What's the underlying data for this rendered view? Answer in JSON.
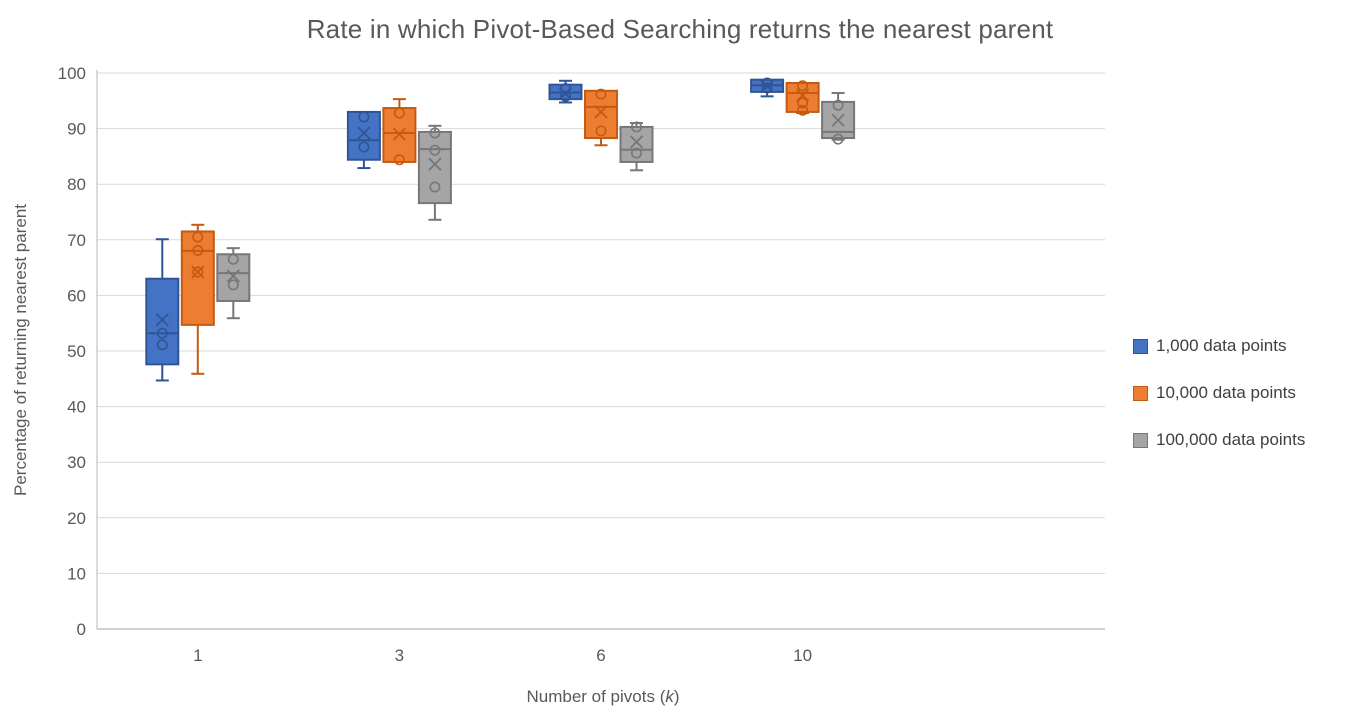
{
  "colors": {
    "background": "#FFFFFF",
    "gridline": "#D9D9D9",
    "axis_line": "#C3C3C3",
    "title_text": "#595959",
    "tick_text": "#595959",
    "legend_text": "#404040"
  },
  "chart_data": {
    "type": "boxplot",
    "title": "Rate in which Pivot-Based Searching returns the nearest parent",
    "xlabel": "Number of pivots (k)",
    "xlabel_parts": {
      "prefix": "Number of pivots (",
      "variable": "k",
      "suffix": ")"
    },
    "ylabel": "Percentage of returning nearest parent",
    "categories": [
      "1",
      "3",
      "6",
      "10"
    ],
    "ylim": [
      0,
      100
    ],
    "ytick_step": 10,
    "grid": true,
    "legend_position": "right",
    "series": [
      {
        "name": "1,000 data points",
        "color": "#4472C4",
        "border": "#2F5597",
        "boxes": [
          {
            "min": 44.7,
            "q1": 47.6,
            "median": 53.2,
            "q3": 63.0,
            "max": 70.1,
            "mean": 55.6,
            "points": [
              53.2,
              51.1
            ]
          },
          {
            "min": 82.9,
            "q1": 84.4,
            "median": 87.9,
            "q3": 93.0,
            "max": 93.0,
            "mean": 89.2,
            "points": [
              92.1,
              86.7
            ]
          },
          {
            "min": 94.7,
            "q1": 95.3,
            "median": 96.5,
            "q3": 97.9,
            "max": 98.6,
            "mean": 96.3,
            "points": [
              97.2,
              95.8
            ]
          },
          {
            "min": 95.8,
            "q1": 96.6,
            "median": 97.8,
            "q3": 98.8,
            "max": 98.8,
            "mean": 97.6,
            "points": [
              98.2,
              97.3
            ]
          }
        ]
      },
      {
        "name": "10,000 data points",
        "color": "#ED7D31",
        "border": "#C55A11",
        "boxes": [
          {
            "min": 45.9,
            "q1": 54.7,
            "median": 68.0,
            "q3": 71.5,
            "max": 72.7,
            "mean": 64.2,
            "points": [
              70.5,
              68.1,
              64.2
            ]
          },
          {
            "min": 84.0,
            "q1": 84.0,
            "median": 89.2,
            "q3": 93.7,
            "max": 95.3,
            "mean": 89.0,
            "points": [
              92.8,
              84.4
            ]
          },
          {
            "min": 87.0,
            "q1": 88.3,
            "median": 93.9,
            "q3": 96.8,
            "max": 96.8,
            "mean": 93.0,
            "points": [
              96.2,
              89.6
            ]
          },
          {
            "min": 92.8,
            "q1": 93.0,
            "median": 96.4,
            "q3": 98.2,
            "max": 98.2,
            "mean": 96.0,
            "points": [
              97.7,
              94.6,
              93.3
            ]
          }
        ]
      },
      {
        "name": "100,000 data points",
        "color": "#A5A5A5",
        "border": "#777777",
        "boxes": [
          {
            "min": 55.9,
            "q1": 59.0,
            "median": 64.0,
            "q3": 67.4,
            "max": 68.5,
            "mean": 63.5,
            "points": [
              66.5,
              61.9
            ]
          },
          {
            "min": 73.6,
            "q1": 76.6,
            "median": 86.3,
            "q3": 89.4,
            "max": 90.5,
            "mean": 83.6,
            "points": [
              89.2,
              86.1,
              79.5
            ]
          },
          {
            "min": 82.5,
            "q1": 84.0,
            "median": 86.2,
            "q3": 90.3,
            "max": 91.0,
            "mean": 87.6,
            "points": [
              90.3,
              85.6
            ]
          },
          {
            "min": 88.0,
            "q1": 88.3,
            "median": 89.4,
            "q3": 94.8,
            "max": 96.4,
            "mean": 91.5,
            "points": [
              94.2,
              88.1
            ]
          }
        ]
      }
    ]
  }
}
